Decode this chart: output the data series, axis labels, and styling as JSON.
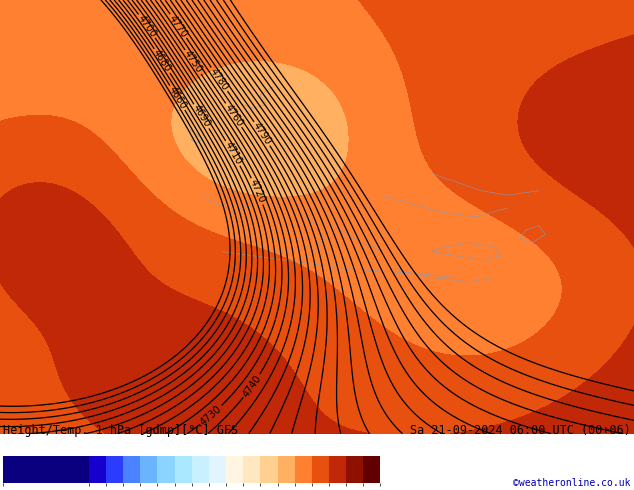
{
  "title_left": "Height/Temp. 1 hPa [gdmp][°C] GFS",
  "title_right": "Sa 21-09-2024 06:00 UTC (00+06)",
  "credit": "©weatheronline.co.uk",
  "colorbar_levels": [
    -80,
    -55,
    -50,
    -45,
    -40,
    -35,
    -30,
    -25,
    -20,
    -15,
    -10,
    -5,
    0,
    5,
    10,
    15,
    20,
    25,
    30
  ],
  "colorbar_colors": [
    "#0a007f",
    "#1500cd",
    "#2b3cff",
    "#4a82ff",
    "#6ab4ff",
    "#8ad4ff",
    "#aae8ff",
    "#c8f0ff",
    "#e0f5ff",
    "#fff5e0",
    "#ffe8c0",
    "#ffd090",
    "#ffb060",
    "#ff8030",
    "#e85010",
    "#c02808",
    "#901000",
    "#600000"
  ],
  "background_color": "#ffffff",
  "contour_color": "#000000",
  "contour_linewidth": 0.9,
  "label_fontsize": 7,
  "title_fontsize": 8.5,
  "credit_fontsize": 7,
  "figsize": [
    6.34,
    4.9
  ],
  "dpi": 100,
  "contour_levels_min": 4640,
  "contour_levels_max": 4900,
  "contour_levels_step": 10,
  "temp_base": 12,
  "geop_base": 4780
}
